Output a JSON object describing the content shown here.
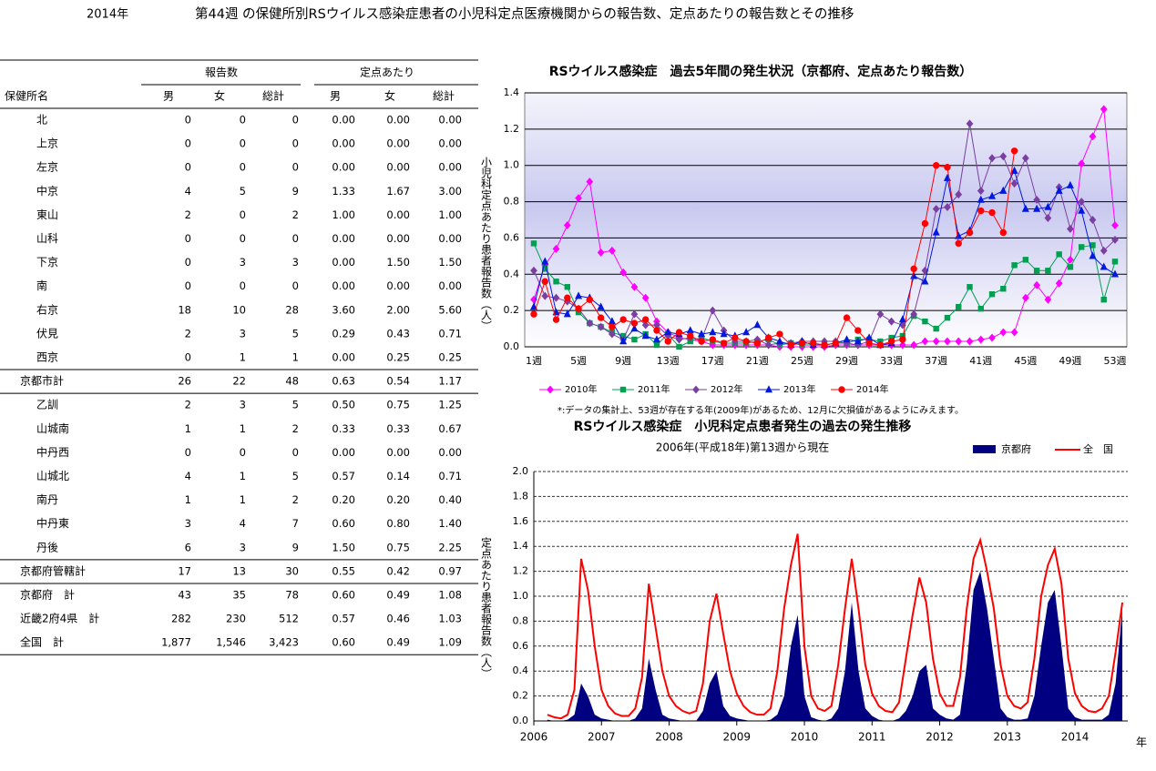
{
  "header": {
    "year": "2014年",
    "title": "第44週 の保健所別RSウイルス感染症患者の小児科定点医療機関からの報告数、定点あたりの報告数とその推移"
  },
  "table": {
    "header_groups": [
      "報告数",
      "定点あたり"
    ],
    "columns": [
      "保健所名",
      "男",
      "女",
      "総計",
      "男",
      "女",
      "総計"
    ],
    "rows": [
      [
        "北",
        "0",
        "0",
        "0",
        "0.00",
        "0.00",
        "0.00"
      ],
      [
        "上京",
        "0",
        "0",
        "0",
        "0.00",
        "0.00",
        "0.00"
      ],
      [
        "左京",
        "0",
        "0",
        "0",
        "0.00",
        "0.00",
        "0.00"
      ],
      [
        "中京",
        "4",
        "5",
        "9",
        "1.33",
        "1.67",
        "3.00"
      ],
      [
        "東山",
        "2",
        "0",
        "2",
        "1.00",
        "0.00",
        "1.00"
      ],
      [
        "山科",
        "0",
        "0",
        "0",
        "0.00",
        "0.00",
        "0.00"
      ],
      [
        "下京",
        "0",
        "3",
        "3",
        "0.00",
        "1.50",
        "1.50"
      ],
      [
        "南",
        "0",
        "0",
        "0",
        "0.00",
        "0.00",
        "0.00"
      ],
      [
        "右京",
        "18",
        "10",
        "28",
        "3.60",
        "2.00",
        "5.60"
      ],
      [
        "伏見",
        "2",
        "3",
        "5",
        "0.29",
        "0.43",
        "0.71"
      ],
      [
        "西京",
        "0",
        "1",
        "1",
        "0.00",
        "0.25",
        "0.25"
      ],
      [
        "京都市計",
        "26",
        "22",
        "48",
        "0.63",
        "0.54",
        "1.17"
      ],
      [
        "乙訓",
        "2",
        "3",
        "5",
        "0.50",
        "0.75",
        "1.25"
      ],
      [
        "山城南",
        "1",
        "1",
        "2",
        "0.33",
        "0.33",
        "0.67"
      ],
      [
        "中丹西",
        "0",
        "0",
        "0",
        "0.00",
        "0.00",
        "0.00"
      ],
      [
        "山城北",
        "4",
        "1",
        "5",
        "0.57",
        "0.14",
        "0.71"
      ],
      [
        "南丹",
        "1",
        "1",
        "2",
        "0.20",
        "0.20",
        "0.40"
      ],
      [
        "中丹東",
        "3",
        "4",
        "7",
        "0.60",
        "0.80",
        "1.40"
      ],
      [
        "丹後",
        "6",
        "3",
        "9",
        "1.50",
        "0.75",
        "2.25"
      ],
      [
        "京都府管轄計",
        "17",
        "13",
        "30",
        "0.55",
        "0.42",
        "0.97"
      ],
      [
        "京都府　計",
        "43",
        "35",
        "78",
        "0.60",
        "0.49",
        "1.08"
      ],
      [
        "近畿2府4県　計",
        "282",
        "230",
        "512",
        "0.57",
        "0.46",
        "1.03"
      ],
      [
        "全国　計",
        "1,877",
        "1,546",
        "3,423",
        "0.60",
        "0.49",
        "1.09"
      ]
    ]
  },
  "chart_data": [
    {
      "type": "line",
      "title": "RSウイルス感染症　過去5年間の発生状況（京都府、定点あたり報告数）",
      "y_label": "小児科定点あたり患者報告数（人）",
      "note": "*:データの集計上、53週が存在する年(2009年)があるため、12月に欠損値があるようにみえます。",
      "categories": [
        "1週",
        null,
        null,
        null,
        "5週",
        null,
        null,
        null,
        "9週",
        null,
        null,
        null,
        "13週",
        null,
        null,
        null,
        "17週",
        null,
        null,
        null,
        "21週",
        null,
        null,
        null,
        "25週",
        null,
        null,
        null,
        "29週",
        null,
        null,
        null,
        "33週",
        null,
        null,
        null,
        "37週",
        null,
        null,
        null,
        "41週",
        null,
        null,
        null,
        "45週",
        null,
        null,
        null,
        "49週",
        null,
        null,
        null,
        "53週"
      ],
      "ylim": [
        0,
        1.4
      ],
      "yticks": [
        {
          "value": 0,
          "label": "0.0"
        },
        0.2,
        0.4,
        0.6,
        0.8,
        {
          "value": 1,
          "label": "1.0"
        },
        1.2,
        1.4
      ],
      "grid": true,
      "legend": "bottom",
      "series": [
        {
          "name": "2010年",
          "color": "#ff00ff",
          "marker": "diamond",
          "values": [
            0.26,
            0.45,
            0.54,
            0.67,
            0.82,
            0.91,
            0.52,
            0.53,
            0.41,
            0.33,
            0.27,
            0.14,
            0.08,
            0.05,
            0.04,
            0.03,
            0.01,
            0.01,
            0.01,
            0.01,
            0.01,
            0.01,
            0,
            0,
            0,
            0,
            0,
            0.01,
            0.01,
            0.01,
            0.01,
            0.01,
            0.01,
            0.01,
            0.01,
            0.03,
            0.03,
            0.03,
            0.03,
            0.03,
            0.04,
            0.05,
            0.08,
            0.08,
            0.27,
            0.34,
            0.26,
            0.35,
            0.48,
            1.01,
            1.16,
            1.31,
            0.67
          ]
        },
        {
          "name": "2011年",
          "color": "#00a050",
          "marker": "square",
          "values": [
            0.57,
            0.43,
            0.36,
            0.33,
            0.19,
            0.13,
            0.11,
            0.08,
            0.06,
            0.04,
            0.07,
            0.01,
            0.07,
            0,
            0.03,
            0.05,
            0.03,
            0.02,
            0.02,
            0.02,
            0.03,
            0.04,
            0.01,
            0.02,
            0.01,
            0.01,
            0.01,
            0.02,
            0.02,
            0.04,
            0.04,
            0.03,
            0.05,
            0.06,
            0.17,
            0.14,
            0.1,
            0.16,
            0.22,
            0.33,
            0.21,
            0.29,
            0.32,
            0.45,
            0.48,
            0.42,
            0.42,
            0.51,
            0.44,
            0.55,
            0.56,
            0.26,
            0.47
          ]
        },
        {
          "name": "2012年",
          "color": "#7a3fa0",
          "marker": "diamond",
          "values": [
            0.42,
            0.28,
            0.27,
            0.25,
            0.21,
            0.13,
            0.11,
            0.07,
            0.04,
            0.18,
            0.12,
            0.12,
            0.06,
            0.04,
            0.05,
            0.04,
            0.2,
            0.09,
            0.03,
            0.03,
            0.04,
            0.01,
            0.02,
            0.02,
            0.03,
            0.03,
            0.03,
            0.03,
            0.02,
            0.01,
            0.03,
            0.18,
            0.14,
            0.12,
            0.18,
            0.42,
            0.76,
            0.77,
            0.84,
            1.23,
            0.86,
            1.04,
            1.05,
            0.9,
            1.04,
            0.81,
            0.71,
            0.88,
            0.65,
            0.8,
            0.7,
            0.53,
            0.59
          ]
        },
        {
          "name": "2013年",
          "color": "#0018e0",
          "marker": "triangle",
          "values": [
            0.22,
            0.47,
            0.19,
            0.18,
            0.28,
            0.27,
            0.22,
            0.14,
            0.03,
            0.1,
            0.06,
            0.04,
            0.08,
            0.07,
            0.09,
            0.07,
            0.08,
            0.07,
            0.06,
            0.08,
            0.12,
            0.05,
            0.03,
            0.01,
            0.03,
            0.01,
            0.01,
            0.02,
            0.04,
            0.03,
            0.05,
            0.01,
            0.02,
            0.15,
            0.39,
            0.36,
            0.63,
            0.93,
            0.61,
            0.64,
            0.81,
            0.83,
            0.86,
            0.97,
            0.76,
            0.76,
            0.77,
            0.86,
            0.89,
            0.75,
            0.5,
            0.44,
            0.4
          ]
        },
        {
          "name": "2014年",
          "color": "#ff0000",
          "marker": "circle",
          "values": [
            0.18,
            0.36,
            0.15,
            0.27,
            0.21,
            0.26,
            0.16,
            0.11,
            0.15,
            0.13,
            0.15,
            0.09,
            0.03,
            0.08,
            0.06,
            0.03,
            0.04,
            0.02,
            0.05,
            0.03,
            0.02,
            0.05,
            0.07,
            0.01,
            0.02,
            0.02,
            0.01,
            0.02,
            0.16,
            0.09,
            0.02,
            0.01,
            0.03,
            0.04,
            0.43,
            0.68,
            1.0,
            0.99,
            0.57,
            0.63,
            0.75,
            0.74,
            0.63,
            1.08,
            null,
            null,
            null,
            null,
            null,
            null,
            null,
            null,
            null
          ]
        }
      ]
    },
    {
      "type": "line",
      "title": "RSウイルス感染症　小児科定点患者発生の過去の発生推移",
      "subtitle": "2006年(平成18年)第13週から現在",
      "y_label": "定点あたり患者報告数（人）",
      "x_label": "年",
      "xlim": [
        2006,
        2014.78
      ],
      "xticks": [
        2006,
        2007,
        2008,
        2009,
        2010,
        2011,
        2012,
        2013,
        2014
      ],
      "ylim": [
        0,
        2
      ],
      "yticks": [
        {
          "value": 0,
          "label": "0.0"
        },
        0.2,
        0.4,
        0.6,
        0.8,
        {
          "value": 1,
          "label": "1.0"
        },
        1.2,
        1.4,
        1.6,
        1.8,
        {
          "value": 2,
          "label": "2.0"
        }
      ],
      "grid": true,
      "legend": "top-right",
      "x": [
        2006.2,
        2006.3,
        2006.4,
        2006.5,
        2006.6,
        2006.7,
        2006.8,
        2006.9,
        2007.0,
        2007.1,
        2007.2,
        2007.3,
        2007.4,
        2007.5,
        2007.6,
        2007.7,
        2007.8,
        2007.9,
        2008.0,
        2008.1,
        2008.2,
        2008.3,
        2008.4,
        2008.5,
        2008.6,
        2008.7,
        2008.8,
        2008.9,
        2009.0,
        2009.1,
        2009.2,
        2009.3,
        2009.4,
        2009.5,
        2009.6,
        2009.7,
        2009.8,
        2009.9,
        2010.0,
        2010.1,
        2010.2,
        2010.3,
        2010.4,
        2010.5,
        2010.6,
        2010.7,
        2010.8,
        2010.9,
        2011.0,
        2011.1,
        2011.2,
        2011.3,
        2011.4,
        2011.5,
        2011.6,
        2011.7,
        2011.8,
        2011.9,
        2012.0,
        2012.1,
        2012.2,
        2012.3,
        2012.4,
        2012.5,
        2012.6,
        2012.7,
        2012.8,
        2012.9,
        2013.0,
        2013.1,
        2013.2,
        2013.3,
        2013.4,
        2013.5,
        2013.6,
        2013.7,
        2013.8,
        2013.9,
        2014.0,
        2014.1,
        2014.2,
        2014.3,
        2014.4,
        2014.5,
        2014.6,
        2014.7
      ],
      "series": [
        {
          "name": "京都府",
          "color": "#000080",
          "style": "area",
          "values": [
            0.01,
            0,
            0,
            0.01,
            0.05,
            0.3,
            0.2,
            0.05,
            0.02,
            0.01,
            0,
            0,
            0,
            0.02,
            0.1,
            0.5,
            0.25,
            0.05,
            0.02,
            0.01,
            0,
            0,
            0,
            0.08,
            0.3,
            0.4,
            0.12,
            0.04,
            0.02,
            0.01,
            0,
            0,
            0,
            0.01,
            0.05,
            0.2,
            0.6,
            0.85,
            0.2,
            0.03,
            0.01,
            0,
            0.02,
            0.1,
            0.4,
            0.95,
            0.4,
            0.1,
            0.04,
            0.01,
            0,
            0,
            0.02,
            0.08,
            0.2,
            0.4,
            0.45,
            0.1,
            0.05,
            0.02,
            0.01,
            0.05,
            0.45,
            1.05,
            1.2,
            0.9,
            0.5,
            0.1,
            0.03,
            0.01,
            0.01,
            0.02,
            0.2,
            0.6,
            0.95,
            1.05,
            0.6,
            0.1,
            0.03,
            0.01,
            0.01,
            0.01,
            0.01,
            0.05,
            0.3,
            0.9
          ]
        },
        {
          "name": "全　国",
          "color": "#ff0000",
          "style": "line",
          "values": [
            0.05,
            0.03,
            0.02,
            0.05,
            0.25,
            1.3,
            1.05,
            0.6,
            0.25,
            0.12,
            0.06,
            0.04,
            0.04,
            0.1,
            0.35,
            1.1,
            0.75,
            0.4,
            0.2,
            0.12,
            0.08,
            0.06,
            0.08,
            0.3,
            0.8,
            1.02,
            0.7,
            0.4,
            0.22,
            0.12,
            0.07,
            0.05,
            0.05,
            0.1,
            0.4,
            0.9,
            1.25,
            1.5,
            0.6,
            0.2,
            0.1,
            0.08,
            0.12,
            0.45,
            0.9,
            1.3,
            0.9,
            0.45,
            0.22,
            0.12,
            0.08,
            0.07,
            0.15,
            0.5,
            0.85,
            1.15,
            0.95,
            0.5,
            0.22,
            0.12,
            0.12,
            0.35,
            0.9,
            1.3,
            1.45,
            1.2,
            0.9,
            0.45,
            0.2,
            0.12,
            0.1,
            0.15,
            0.5,
            1.0,
            1.25,
            1.38,
            1.1,
            0.5,
            0.22,
            0.12,
            0.08,
            0.07,
            0.1,
            0.2,
            0.55,
            0.95
          ]
        }
      ]
    }
  ]
}
